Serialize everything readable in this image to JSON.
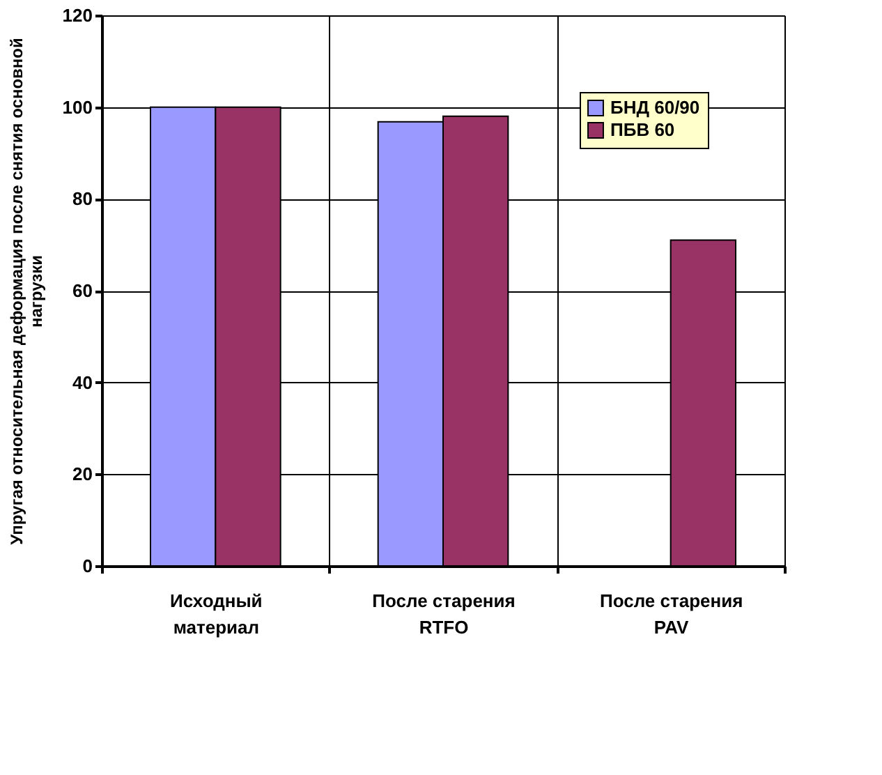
{
  "chart_data": {
    "type": "bar",
    "ylabel": "Упругая относительная деформация после снятия основной\nнагрузки",
    "categories": [
      "Исходный\nматериал",
      "После старения\nRTFO",
      "После старения\nPAV"
    ],
    "series": [
      {
        "name": "БНД 60/90",
        "color": "#9999ff",
        "values": [
          100,
          96.8,
          null
        ]
      },
      {
        "name": "ПБВ 60",
        "color": "#993366",
        "values": [
          100,
          98,
          71
        ]
      }
    ],
    "ylim": [
      0,
      120
    ],
    "yticks": [
      0,
      20,
      40,
      60,
      80,
      100,
      120
    ],
    "grid": true,
    "legend": "top right"
  }
}
